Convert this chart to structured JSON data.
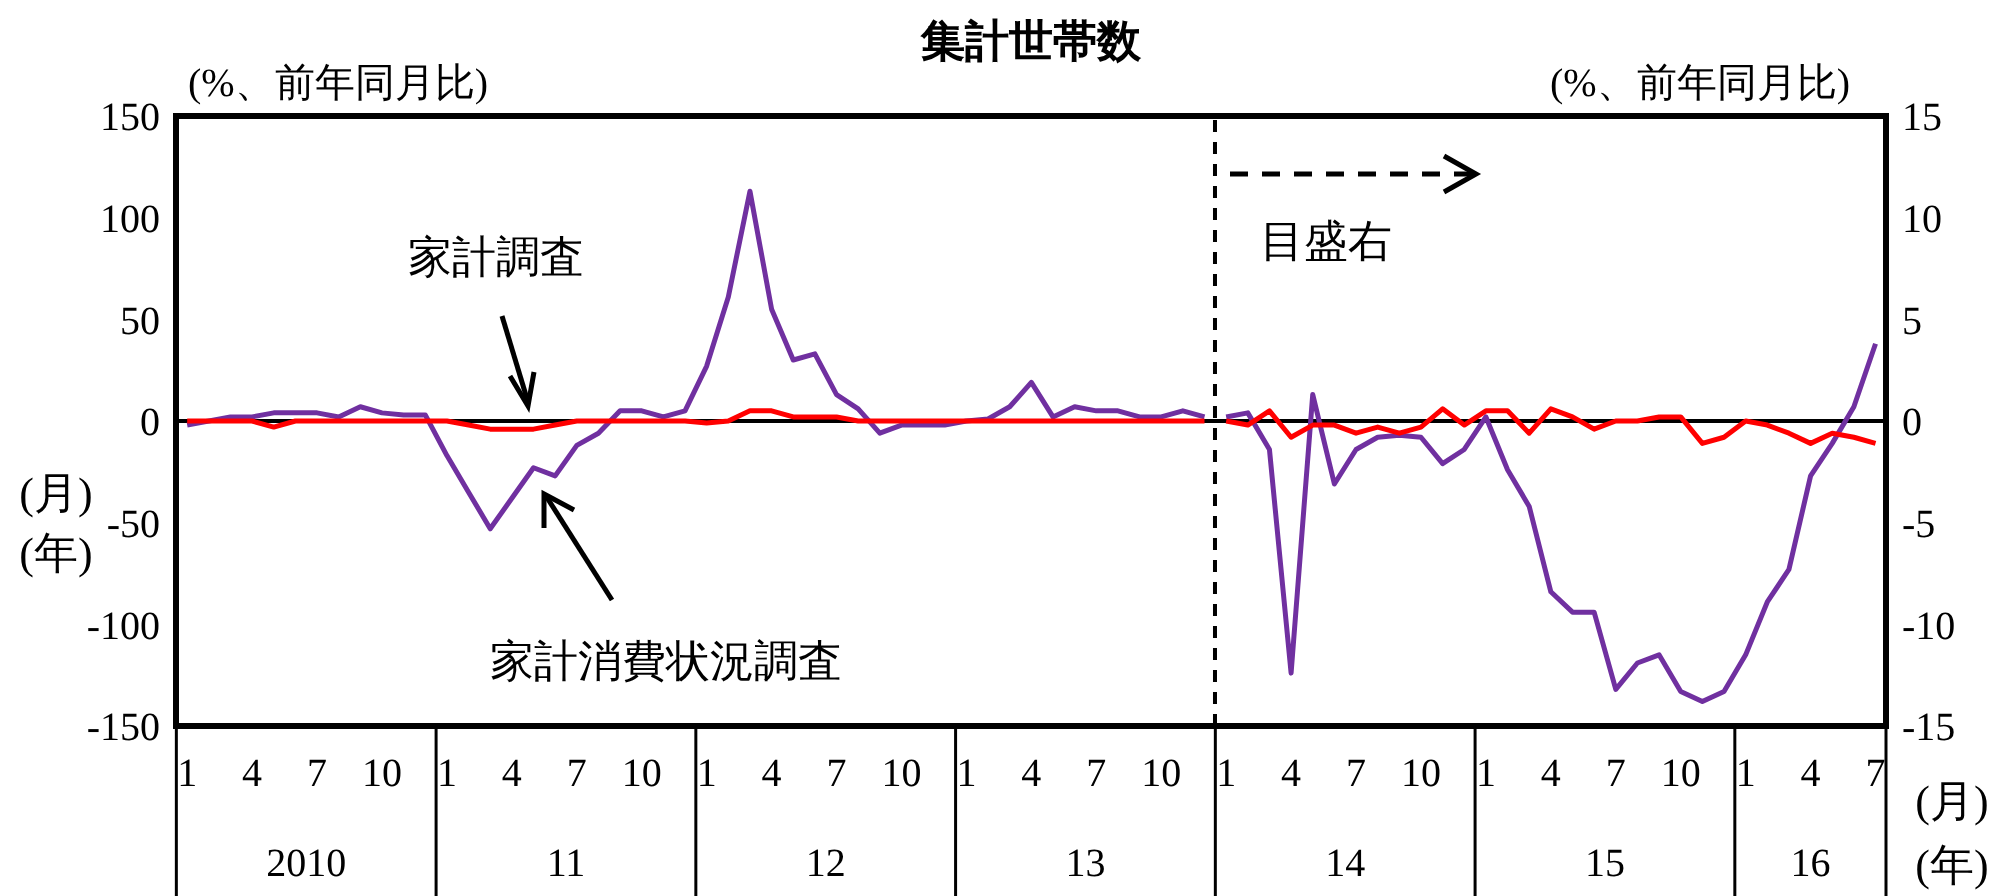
{
  "chart_data": {
    "type": "line",
    "title": "集計世帯数",
    "ylabel": "(%、前年同月比)",
    "y2label": "(%、前年同月比)",
    "annotations": [
      "家計調査",
      "家計消費状況調査",
      "目盛右",
      "2010",
      "11",
      "12",
      "13",
      "14",
      "15",
      "16",
      "(月)",
      "(年)",
      "(月)",
      "(年)"
    ],
    "xlim": [
      "2009-12-16",
      "2016-07-16"
    ],
    "xticks": [
      {
        "value": "2010-01",
        "label": "1"
      },
      {
        "value": "2010-04",
        "label": "4"
      },
      {
        "value": "2010-07",
        "label": "7"
      },
      {
        "value": "2010-10",
        "label": "10"
      },
      {
        "value": "2011-01",
        "label": "1"
      },
      {
        "value": "2011-04",
        "label": "4"
      },
      {
        "value": "2011-07",
        "label": "7"
      },
      {
        "value": "2011-10",
        "label": "10"
      },
      {
        "value": "2012-01",
        "label": "1"
      },
      {
        "value": "2012-04",
        "label": "4"
      },
      {
        "value": "2012-07",
        "label": "7"
      },
      {
        "value": "2012-10",
        "label": "10"
      },
      {
        "value": "2013-01",
        "label": "1"
      },
      {
        "value": "2013-04",
        "label": "4"
      },
      {
        "value": "2013-07",
        "label": "7"
      },
      {
        "value": "2013-10",
        "label": "10"
      },
      {
        "value": "2014-01",
        "label": "1"
      },
      {
        "value": "2014-04",
        "label": "4"
      },
      {
        "value": "2014-07",
        "label": "7"
      },
      {
        "value": "2014-10",
        "label": "10"
      },
      {
        "value": "2015-01",
        "label": "1"
      },
      {
        "value": "2015-04",
        "label": "4"
      },
      {
        "value": "2015-07",
        "label": "7"
      },
      {
        "value": "2015-10",
        "label": "10"
      },
      {
        "value": "2016-01",
        "label": "1"
      },
      {
        "value": "2016-04",
        "label": "4"
      },
      {
        "value": "2016-07",
        "label": "7"
      }
    ],
    "ylim": [
      -150,
      150
    ],
    "yticks": [
      -150,
      -100,
      -50,
      0,
      50,
      100,
      150
    ],
    "y2lim": [
      -15,
      15
    ],
    "y2ticks": [
      -15,
      -10,
      -5,
      0,
      5,
      10,
      15
    ],
    "grid": false,
    "legend": false,
    "marker": "none",
    "line_style": "solid",
    "ref_lines": [
      {
        "axis": "y",
        "value": 0,
        "color": "#000000",
        "line_style": "solid"
      },
      {
        "axis": "x",
        "value": "2013-12-16",
        "color": "#000000",
        "line_style": "dashed"
      }
    ],
    "series": [
      {
        "color": "#7030a0",
        "x": [
          "2010-01",
          "2010-02",
          "2010-03",
          "2010-04",
          "2010-05",
          "2010-06",
          "2010-07",
          "2010-08",
          "2010-09",
          "2010-10",
          "2010-11",
          "2010-12",
          "2011-01",
          "2011-02",
          "2011-03",
          "2011-04",
          "2011-05",
          "2011-06",
          "2011-07",
          "2011-08",
          "2011-09",
          "2011-10",
          "2011-11",
          "2011-12",
          "2012-01",
          "2012-02",
          "2012-03",
          "2012-04",
          "2012-05",
          "2012-06",
          "2012-07",
          "2012-08",
          "2012-09",
          "2012-10",
          "2012-11",
          "2012-12",
          "2013-01",
          "2013-02",
          "2013-03",
          "2013-04",
          "2013-05",
          "2013-06",
          "2013-07",
          "2013-08",
          "2013-09",
          "2013-10",
          "2013-11",
          "2013-12"
        ],
        "values": [
          -2,
          0,
          2,
          2,
          4,
          4,
          4,
          2,
          7,
          4,
          3,
          3,
          -17,
          -35,
          -53,
          -38,
          -23,
          -27,
          -12,
          -6,
          5,
          5,
          2,
          5,
          27,
          61,
          113,
          55,
          30,
          33,
          13,
          6,
          -6,
          -2,
          -2,
          -2,
          0,
          1,
          7,
          19,
          2,
          7,
          5,
          5,
          2,
          2,
          5,
          2
        ]
      },
      {
        "color": "#ff0000",
        "x": [
          "2010-01",
          "2010-02",
          "2010-03",
          "2010-04",
          "2010-05",
          "2010-06",
          "2010-07",
          "2010-08",
          "2010-09",
          "2010-10",
          "2010-11",
          "2010-12",
          "2011-01",
          "2011-02",
          "2011-03",
          "2011-04",
          "2011-05",
          "2011-06",
          "2011-07",
          "2011-08",
          "2011-09",
          "2011-10",
          "2011-11",
          "2011-12",
          "2012-01",
          "2012-02",
          "2012-03",
          "2012-04",
          "2012-05",
          "2012-06",
          "2012-07",
          "2012-08",
          "2012-09",
          "2012-10",
          "2012-11",
          "2012-12",
          "2013-01",
          "2013-02",
          "2013-03",
          "2013-04",
          "2013-05",
          "2013-06",
          "2013-07",
          "2013-08",
          "2013-09",
          "2013-10",
          "2013-11",
          "2013-12"
        ],
        "values": [
          0,
          0,
          0,
          0,
          -3,
          0,
          0,
          0,
          0,
          0,
          0,
          0,
          0,
          -2,
          -4,
          -4,
          -4,
          -2,
          0,
          0,
          0,
          0,
          0,
          0,
          -1,
          0,
          5,
          5,
          2,
          2,
          2,
          0,
          0,
          0,
          0,
          0,
          0,
          0,
          0,
          0,
          0,
          0,
          0,
          0,
          0,
          0,
          0,
          0
        ]
      },
      {
        "color": "#7030a0",
        "axis": "y2",
        "x": [
          "2014-01",
          "2014-02",
          "2014-03",
          "2014-04",
          "2014-05",
          "2014-06",
          "2014-07",
          "2014-08",
          "2014-09",
          "2014-10",
          "2014-11",
          "2014-12",
          "2015-01",
          "2015-02",
          "2015-03",
          "2015-04",
          "2015-05",
          "2015-06",
          "2015-07",
          "2015-08",
          "2015-09",
          "2015-10",
          "2015-11",
          "2015-12",
          "2016-01",
          "2016-02",
          "2016-03",
          "2016-04",
          "2016-05",
          "2016-06",
          "2016-07"
        ],
        "values": [
          0.2,
          0.4,
          -1.4,
          -12.4,
          1.3,
          -3.1,
          -1.4,
          -0.8,
          -0.7,
          -0.8,
          -2.1,
          -1.4,
          0.2,
          -2.4,
          -4.2,
          -8.4,
          -9.4,
          -9.4,
          -13.2,
          -11.9,
          -11.5,
          -13.3,
          -13.8,
          -13.3,
          -11.5,
          -8.9,
          -7.3,
          -2.7,
          -1.1,
          0.7,
          3.8
        ]
      },
      {
        "color": "#ff0000",
        "axis": "y2",
        "x": [
          "2014-01",
          "2014-02",
          "2014-03",
          "2014-04",
          "2014-05",
          "2014-06",
          "2014-07",
          "2014-08",
          "2014-09",
          "2014-10",
          "2014-11",
          "2014-12",
          "2015-01",
          "2015-02",
          "2015-03",
          "2015-04",
          "2015-05",
          "2015-06",
          "2015-07",
          "2015-08",
          "2015-09",
          "2015-10",
          "2015-11",
          "2015-12",
          "2016-01",
          "2016-02",
          "2016-03",
          "2016-04",
          "2016-05",
          "2016-06",
          "2016-07"
        ],
        "values": [
          0,
          -0.2,
          0.5,
          -0.8,
          -0.2,
          -0.2,
          -0.6,
          -0.3,
          -0.6,
          -0.3,
          0.6,
          -0.2,
          0.5,
          0.5,
          -0.6,
          0.6,
          0.2,
          -0.4,
          0,
          0,
          0.2,
          0.2,
          -1.1,
          -0.8,
          0,
          -0.2,
          -0.6,
          -1.1,
          -0.6,
          -0.8,
          -1.1
        ]
      }
    ]
  }
}
